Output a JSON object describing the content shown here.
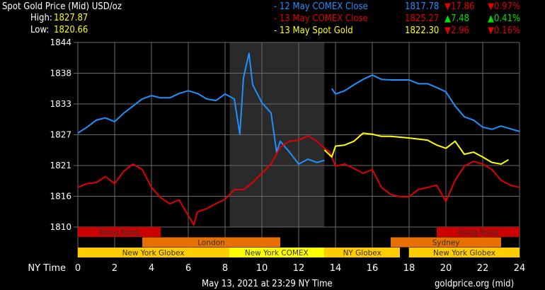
{
  "header": {
    "title": "Spot Gold Price (Mid) USD/oz",
    "high_label": "High:",
    "high_value": "1827.87",
    "low_label": "Low:",
    "low_value": "1820.66"
  },
  "legend": [
    {
      "label": "- 12 May COMEX Close",
      "price": "1817.78",
      "change": "17.86",
      "pct": "0.97%",
      "dir": "down",
      "color": "#1e90ff"
    },
    {
      "label": "- 13 May COMEX Close",
      "price": "1825.27",
      "change": "7.48",
      "pct": "0.41%",
      "dir": "up",
      "color": "#e00000"
    },
    {
      "label": "- 13 May Spot Gold",
      "price": "1822.30",
      "change": "2.96",
      "pct": "0.16%",
      "dir": "down",
      "color": "#ffff00"
    }
  ],
  "colors": {
    "up": "#00e000",
    "down": "#e00000",
    "grid": "#6a6a6a",
    "comex_shade": "#2a2a2a"
  },
  "footer": {
    "timestamp": "May 13, 2021 at 23:29 NY Time",
    "source": "goldprice.org (mid)"
  },
  "chart_data": {
    "type": "line",
    "xlabel": "NY Time",
    "xlim": [
      0,
      24
    ],
    "ylim": [
      1810,
      1844
    ],
    "x_ticks": [
      "0",
      "2",
      "4",
      "6",
      "8",
      "10",
      "12",
      "14",
      "16",
      "18",
      "20",
      "22",
      "24"
    ],
    "y_ticks": [
      {
        "label": "1844",
        "value": 1844
      },
      {
        "label": "1838",
        "value": 1838.33
      },
      {
        "label": "1833",
        "value": 1832.67
      },
      {
        "label": "1827",
        "value": 1827
      },
      {
        "label": "1821",
        "value": 1821.33
      },
      {
        "label": "1816",
        "value": 1815.67
      },
      {
        "label": "1810",
        "value": 1810
      }
    ],
    "grid": true,
    "shaded_range": [
      8.25,
      13.4
    ],
    "series": [
      {
        "name": "12 May COMEX Close",
        "color": "#1e90ff",
        "segments": [
          [
            [
              0,
              1827.3
            ],
            [
              0.5,
              1828.4
            ],
            [
              1,
              1829.7
            ],
            [
              1.5,
              1830.1
            ],
            [
              2,
              1829.4
            ],
            [
              2.5,
              1831
            ],
            [
              3,
              1832.3
            ],
            [
              3.5,
              1833.6
            ],
            [
              4,
              1834.2
            ],
            [
              4.5,
              1833.8
            ],
            [
              5,
              1833.8
            ],
            [
              5.5,
              1834.6
            ],
            [
              6,
              1835.1
            ],
            [
              6.5,
              1834.6
            ],
            [
              7,
              1833.6
            ],
            [
              7.5,
              1833.3
            ],
            [
              8,
              1834.5
            ],
            [
              8.5,
              1833.6
            ],
            [
              8.8,
              1827.1
            ],
            [
              9,
              1837.5
            ],
            [
              9.3,
              1842
            ],
            [
              9.5,
              1836.2
            ],
            [
              10,
              1832.9
            ],
            [
              10.5,
              1831
            ],
            [
              10.8,
              1823.8
            ],
            [
              11,
              1825.8
            ],
            [
              11.5,
              1823.8
            ],
            [
              12,
              1821.6
            ],
            [
              12.5,
              1822.5
            ],
            [
              13,
              1821.9
            ],
            [
              13.4,
              1822.3
            ]
          ],
          [
            [
              13.8,
              1835.5
            ],
            [
              14,
              1834.5
            ],
            [
              14.5,
              1835.1
            ],
            [
              15,
              1836.2
            ],
            [
              15.5,
              1837.2
            ],
            [
              16,
              1838
            ],
            [
              16.5,
              1837.2
            ],
            [
              17,
              1837.1
            ],
            [
              18,
              1837.1
            ],
            [
              18.5,
              1836.4
            ],
            [
              19,
              1836.4
            ],
            [
              19.5,
              1835.7
            ],
            [
              20,
              1834.9
            ],
            [
              20.5,
              1832.3
            ],
            [
              21,
              1830.3
            ],
            [
              21.5,
              1829.7
            ],
            [
              22,
              1828.4
            ],
            [
              22.5,
              1828
            ],
            [
              23,
              1828.6
            ],
            [
              23.5,
              1828.1
            ],
            [
              24,
              1827.6
            ]
          ]
        ]
      },
      {
        "name": "13 May COMEX Close",
        "color": "#e00000",
        "segments": [
          [
            [
              0,
              1817.3
            ],
            [
              0.5,
              1818
            ],
            [
              1,
              1818.2
            ],
            [
              1.5,
              1819.3
            ],
            [
              2,
              1818
            ],
            [
              2.5,
              1820.3
            ],
            [
              3,
              1821.6
            ],
            [
              3.5,
              1820.6
            ],
            [
              4,
              1817.3
            ],
            [
              4.5,
              1815.4
            ],
            [
              5,
              1814.3
            ],
            [
              5.5,
              1815
            ],
            [
              6,
              1812.1
            ],
            [
              6.3,
              1810.4
            ],
            [
              6.5,
              1812.8
            ],
            [
              7,
              1813.4
            ],
            [
              7.5,
              1814.3
            ],
            [
              8,
              1815.1
            ],
            [
              8.5,
              1816.9
            ],
            [
              9,
              1816.9
            ],
            [
              9.5,
              1818.2
            ],
            [
              10,
              1819.9
            ],
            [
              10.5,
              1821.6
            ],
            [
              11,
              1824.7
            ],
            [
              11.5,
              1825.8
            ],
            [
              12,
              1826
            ],
            [
              12.5,
              1826.8
            ],
            [
              13,
              1825.8
            ],
            [
              13.4,
              1824.5
            ],
            [
              13.7,
              1823.8
            ],
            [
              14,
              1821.2
            ],
            [
              14.5,
              1821.6
            ],
            [
              15,
              1820.8
            ],
            [
              15.5,
              1819.9
            ],
            [
              16,
              1820.6
            ],
            [
              16.5,
              1817.3
            ],
            [
              17,
              1816
            ],
            [
              17.5,
              1815.6
            ],
            [
              18,
              1815.6
            ],
            [
              18.5,
              1816.9
            ],
            [
              19,
              1817.3
            ],
            [
              19.5,
              1817.7
            ],
            [
              20,
              1814.7
            ],
            [
              20.5,
              1818.6
            ],
            [
              21,
              1821.2
            ],
            [
              21.5,
              1822.1
            ],
            [
              22,
              1821.6
            ],
            [
              22.5,
              1820.6
            ],
            [
              23,
              1818.6
            ],
            [
              23.5,
              1817.7
            ],
            [
              24,
              1817.3
            ]
          ]
        ]
      },
      {
        "name": "13 May Spot Gold",
        "color": "#ffff00",
        "segments": [
          [
            [
              13.4,
              1824.2
            ],
            [
              13.8,
              1822.9
            ],
            [
              14,
              1824.9
            ],
            [
              14.5,
              1825.1
            ],
            [
              15,
              1825.8
            ],
            [
              15.5,
              1827.3
            ],
            [
              16,
              1827.1
            ],
            [
              16.5,
              1826.7
            ],
            [
              17,
              1826.7
            ],
            [
              18,
              1826.4
            ],
            [
              18.5,
              1826.2
            ],
            [
              19,
              1826
            ],
            [
              19.5,
              1825.1
            ],
            [
              20,
              1824.5
            ],
            [
              20.5,
              1825.8
            ],
            [
              21,
              1823.4
            ],
            [
              21.5,
              1823.8
            ],
            [
              22,
              1822.9
            ],
            [
              22.5,
              1821.9
            ],
            [
              23,
              1821.6
            ],
            [
              23.4,
              1822.4
            ]
          ]
        ]
      }
    ],
    "sessions": [
      {
        "label": "Hong Kong",
        "row": 0,
        "start": 0,
        "end": 4.5,
        "color": "#cc0000"
      },
      {
        "label": "Hong Kong",
        "row": 0,
        "start": 19.5,
        "end": 24,
        "color": "#cc0000"
      },
      {
        "label": "London",
        "row": 1,
        "start": 3.5,
        "end": 11,
        "color": "#e87000"
      },
      {
        "label": "Sydney",
        "row": 1,
        "start": 17,
        "end": 23,
        "color": "#e87000"
      },
      {
        "label": "New York Globex",
        "row": 2,
        "start": 0,
        "end": 8.2,
        "color": "#ffcc00"
      },
      {
        "label": "New York COMEX",
        "row": 2,
        "start": 8.2,
        "end": 13.4,
        "color": "#ffff00"
      },
      {
        "label": "NY Globex",
        "row": 2,
        "start": 13.4,
        "end": 17.5,
        "color": "#ffcc00"
      },
      {
        "label": "New York Globex",
        "row": 2,
        "start": 18,
        "end": 24,
        "color": "#ffcc00"
      }
    ]
  }
}
